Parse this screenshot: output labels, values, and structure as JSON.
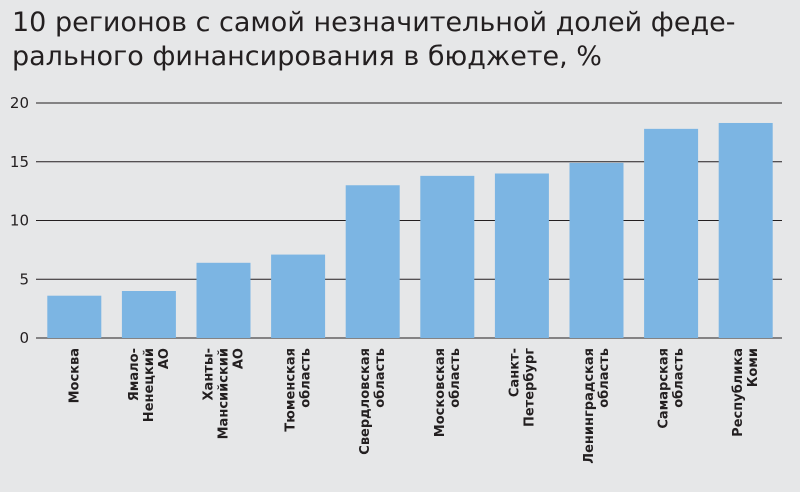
{
  "chart_data": {
    "type": "bar",
    "title_lines": [
      "10 регионов с самой незначительной долей феде-",
      "рального финансирования в бюджете, %"
    ],
    "categories": [
      [
        "Москва"
      ],
      [
        "Ямало-",
        "Ненецкий",
        "АО"
      ],
      [
        "Ханты-",
        "Мансийский",
        "АО"
      ],
      [
        "Тюменская",
        "область"
      ],
      [
        "Свердловская",
        "область"
      ],
      [
        "Московская",
        "область"
      ],
      [
        "Санкт-",
        "Петербург"
      ],
      [
        "Ленинградская",
        "область"
      ],
      [
        "Самарская",
        "область"
      ],
      [
        "Республика",
        "Коми"
      ]
    ],
    "values": [
      3.6,
      4.0,
      6.4,
      7.1,
      13.0,
      13.8,
      14.0,
      14.9,
      17.8,
      18.3
    ],
    "ylim": [
      0,
      20
    ],
    "yticks": [
      "0",
      "5",
      "10",
      "15",
      "20"
    ],
    "grid": true,
    "colors": {
      "bar": "#7cb5e3",
      "grid": "#231f20",
      "background": "#e6e7e8"
    }
  }
}
